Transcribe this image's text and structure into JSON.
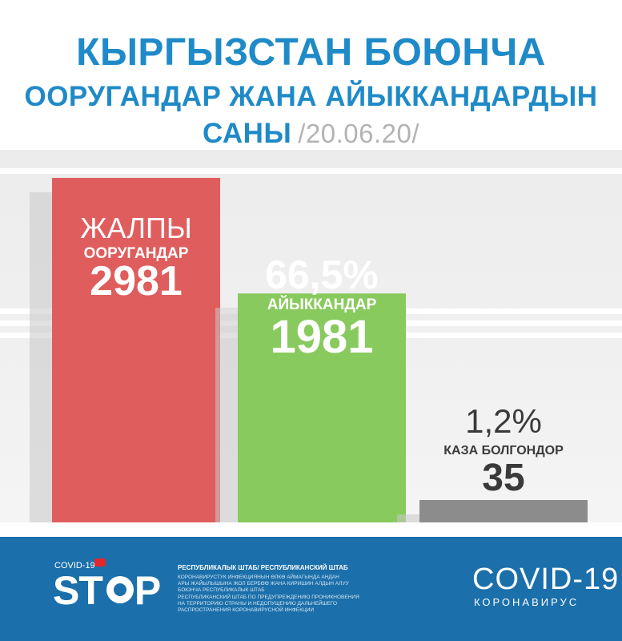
{
  "header": {
    "line1": "КЫРГЫЗСТАН БОЮНЧА",
    "line2": "ООРУГАНДАР ЖАНА АЙЫККАНДАРДЫН",
    "line3": "САНЫ",
    "date": "/20.06.20/"
  },
  "chart_data": {
    "type": "bar",
    "title": "КЫРГЫЗСТАН БОЮНЧА ООРУГАНДАР ЖАНА АЙЫККАНДАРДЫН САНЫ /20.06.20/",
    "categories": [
      "ЖАЛПЫ ООРУГАНДАР",
      "АЙЫККАНДАР",
      "КАЗА БОЛГОНДОР"
    ],
    "values": [
      2981,
      1981,
      35
    ],
    "colors": [
      "#e05d5d",
      "#88ca5e",
      "#8c8c8c"
    ],
    "bars": [
      {
        "category": "ЖАЛПЫ",
        "subcategory": "ООРУГАНДАР",
        "value_label": "2981",
        "percent_label": ""
      },
      {
        "category": "",
        "subcategory": "АЙЫККАНДАР",
        "value_label": "1981",
        "percent_label": "66,5%"
      },
      {
        "category": "",
        "subcategory": "КАЗА БОЛГОНДОР",
        "value_label": "35",
        "percent_label": "1,2%"
      }
    ],
    "xlabel": "",
    "ylabel": "",
    "grid": false,
    "legend": "none"
  },
  "footer": {
    "logo_small": "COVID-19",
    "logo_main": "ST",
    "logo_end": "P",
    "headquarters": "РЕСПУБЛИКАЛЫК ШТАБ/ РЕСПУБЛИКАНСКИЙ ШТАБ",
    "info_lines": [
      "КОРОНАВИРУСТУК ИНФЕКЦИЯНЫН ӨЛКӨ АЙМАГЫНДА АНДАН",
      "АРЫ ЖАЙЫЛЫШЫНА ЖОЛ БЕРБӨӨ ЖАНА КИРИШИН АЛДЫН АЛУУ",
      "БОЮНЧА РЕСПУБЛИКАЛЫК ШТАБ",
      "РЕСПУБЛИКАНСКИЙ ШТАБ ПО ПРЕДУПРЕЖДЕНИЮ ПРОНИКНОВЕНИЯ",
      "НА ТЕРРИТОРИЮ СТРАНЫ И НЕДОПУЩЕНИЮ ДАЛЬНЕЙШЕГО",
      "РАСПРОСТРАНЕНИЯ КОРОНАВИРУСНОЙ ИНФЕКЦИИ"
    ],
    "covid_label": "COVID-19",
    "corona_label": "КОРОНАВИРУС"
  }
}
